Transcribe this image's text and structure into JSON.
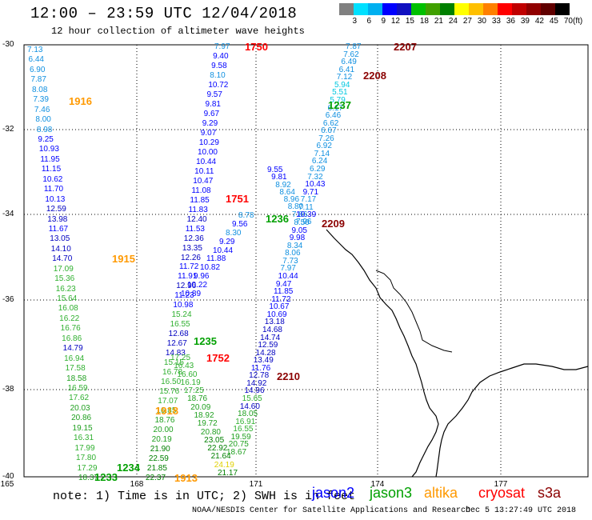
{
  "title": "12:00 – 23:59 UTC 12/04/2018",
  "subtitle": "12 hour collection of altimeter wave heights",
  "legend": {
    "unit": "(ft)",
    "labels": [
      "3",
      "6",
      "9",
      "12",
      "15",
      "18",
      "21",
      "24",
      "27",
      "30",
      "33",
      "36",
      "39",
      "42",
      "45",
      "70"
    ],
    "colors": [
      "#808080",
      "#00e0ff",
      "#00b0f0",
      "#0000ff",
      "#1010c0",
      "#00c000",
      "#40a000",
      "#008000",
      "#ffff00",
      "#ffc000",
      "#ff8000",
      "#ff0000",
      "#c00000",
      "#900000",
      "#600000",
      "#000000"
    ]
  },
  "axes": {
    "lat_labels": [
      "-30",
      "-32",
      "-34",
      "-36",
      "-38",
      "-40"
    ],
    "lon_labels": [
      "165",
      "168",
      "171",
      "174",
      "177"
    ]
  },
  "note": "note: 1) Time is in UTC; 2) SWH is in feet",
  "satellites": [
    {
      "name": "jason2",
      "color": "#0000ff"
    },
    {
      "name": "jason3",
      "color": "#00a000"
    },
    {
      "name": "altika",
      "color": "#ff9900"
    },
    {
      "name": "cryosat",
      "color": "#ff0000"
    },
    {
      "name": "s3a",
      "color": "#8b0000"
    }
  ],
  "credit": "NOAA/NESDIS Center for Satellite Applications and Research",
  "timestamp": "Dec  5 13:27:49 UTC 2018",
  "track_labels": [
    {
      "text": "1916",
      "color": "#ff9900"
    },
    {
      "text": "1915",
      "color": "#ff9900"
    },
    {
      "text": "1918",
      "color": "#ff9900"
    },
    {
      "text": "1913",
      "color": "#ff9900"
    },
    {
      "text": "1750",
      "color": "#ff0000"
    },
    {
      "text": "1751",
      "color": "#ff0000"
    },
    {
      "text": "1752",
      "color": "#ff0000"
    },
    {
      "text": "1237",
      "color": "#00a000"
    },
    {
      "text": "1236",
      "color": "#00a000"
    },
    {
      "text": "1235",
      "color": "#00a000"
    },
    {
      "text": "1234",
      "color": "#00a000"
    },
    {
      "text": "1233",
      "color": "#00a000"
    },
    {
      "text": "2207",
      "color": "#8b0000"
    },
    {
      "text": "2208",
      "color": "#8b0000"
    },
    {
      "text": "2209",
      "color": "#8b0000"
    },
    {
      "text": "2210",
      "color": "#8b0000"
    }
  ],
  "tracks": {
    "left": [
      "7.13",
      "6.44",
      "6.90",
      "7.87",
      "8.08",
      "7.39",
      "7.46",
      "8.00",
      "8.98",
      "9.25",
      "10.93",
      "11.95",
      "11.15",
      "10.62",
      "11.70",
      "10.13",
      "12.59",
      "13.98",
      "11.67",
      "13.05",
      "14.10",
      "14.70",
      "17.09",
      "15.36",
      "16.23",
      "15.64",
      "16.08",
      "16.22",
      "16.76",
      "16.86",
      "14.79",
      "16.94",
      "17.58",
      "18.58",
      "16.59",
      "17.62",
      "20.03",
      "20.86",
      "19.15",
      "16.31",
      "17.99",
      "17.80",
      "17.29",
      "18.37"
    ],
    "midleft": [
      "7.97",
      "9.40",
      "9.58",
      "8.10",
      "10.72",
      "9.57",
      "9.81",
      "9.67",
      "9.29",
      "9.07",
      "10.29",
      "10.00",
      "10.44",
      "10.11",
      "10.47",
      "11.08",
      "11.85",
      "11.83",
      "12.40",
      "11.53",
      "12.36",
      "13.35",
      "12.26",
      "11.72",
      "11.91",
      "12.96",
      "11.23",
      "10.98",
      "15.24",
      "16.55",
      "12.68",
      "12.67",
      "14.83",
      "15.15",
      "16.78",
      "16.50",
      "15.76",
      "17.07",
      "16.85",
      "18.76",
      "20.00",
      "20.19",
      "21.90",
      "22.59",
      "21.85",
      "22.37"
    ],
    "midcenter": [
      "17.25",
      "16.43",
      "16.60",
      "16.19",
      "17.25",
      "18.76",
      "20.09",
      "18.92",
      "19.72",
      "20.80",
      "23.05",
      "22.92",
      "21.64",
      "24.19",
      "21.17"
    ],
    "rightdesc": [
      "8.78",
      "9.56",
      "8.30",
      "9.29",
      "10.44",
      "11.88",
      "10.82",
      "9.96",
      "10.22",
      "10.89"
    ],
    "cryo2": [
      "9.55",
      "9.81",
      "8.92",
      "8.64",
      "8.96",
      "8.80",
      "7.86",
      "7.96"
    ],
    "east": [
      "7.87",
      "7.62",
      "6.49",
      "6.41",
      "7.12",
      "5.94",
      "5.51",
      "5.79",
      "6.17",
      "6.46",
      "6.62",
      "6.67",
      "7.26",
      "6.92",
      "7.14",
      "6.24",
      "6.29",
      "7.32",
      "10.43",
      "9.71",
      "7.17",
      "7.11",
      "10.39",
      "8.50",
      "9.05",
      "9.98",
      "8.34",
      "8.06",
      "7.73",
      "7.97",
      "10.44",
      "9.47",
      "11.85",
      "11.72",
      "10.67",
      "10.69",
      "13.18",
      "14.68",
      "14.74",
      "12.59",
      "14.28",
      "13.49",
      "11.76",
      "12.78",
      "14.92",
      "14.96",
      "15.65",
      "14.60",
      "18.05",
      "16.91",
      "16.55",
      "19.59",
      "20.75",
      "18.67"
    ]
  }
}
